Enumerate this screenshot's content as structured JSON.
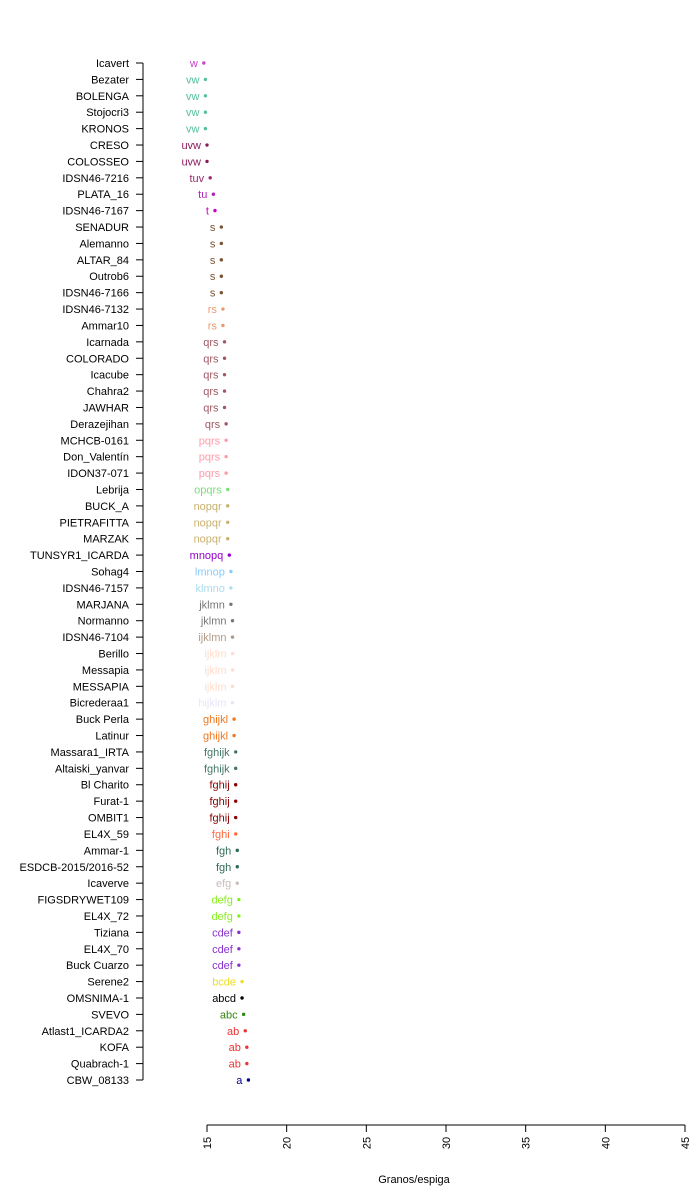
{
  "chart_data": {
    "type": "scatter",
    "title": "",
    "xlabel": "Granos/espiga",
    "ylabel": "",
    "xlim": [
      15,
      45
    ],
    "x_ticks": [
      15,
      20,
      25,
      30,
      35,
      40,
      45
    ],
    "grid": false,
    "legend": "none",
    "points": [
      {
        "genotype": "Icavert",
        "value": 14.8,
        "group": "w",
        "color": "#cc44cc"
      },
      {
        "genotype": "Bezater",
        "value": 14.9,
        "group": "vw",
        "color": "#55c0a0"
      },
      {
        "genotype": "BOLENGA",
        "value": 14.9,
        "group": "vw",
        "color": "#55c0a0"
      },
      {
        "genotype": "Stojocri3",
        "value": 14.9,
        "group": "vw",
        "color": "#55c0a0"
      },
      {
        "genotype": "KRONOS",
        "value": 14.9,
        "group": "vw",
        "color": "#55c0a0"
      },
      {
        "genotype": "CRESO",
        "value": 15.0,
        "group": "uvw",
        "color": "#8b1a5a"
      },
      {
        "genotype": "COLOSSEO",
        "value": 15.0,
        "group": "uvw",
        "color": "#8b1a5a"
      },
      {
        "genotype": "IDSN46-7216",
        "value": 15.2,
        "group": "tuv",
        "color": "#9b2a70"
      },
      {
        "genotype": "PLATA_16",
        "value": 15.4,
        "group": "tu",
        "color": "#b020b8"
      },
      {
        "genotype": "IDSN46-7167",
        "value": 15.5,
        "group": "t",
        "color": "#cc00cc"
      },
      {
        "genotype": "SENADUR",
        "value": 15.9,
        "group": "s",
        "color": "#7a5230"
      },
      {
        "genotype": "Alemanno",
        "value": 15.9,
        "group": "s",
        "color": "#7a5230"
      },
      {
        "genotype": "ALTAR_84",
        "value": 15.9,
        "group": "s",
        "color": "#7a5230"
      },
      {
        "genotype": "Outrob6",
        "value": 15.9,
        "group": "s",
        "color": "#7a5230"
      },
      {
        "genotype": "IDSN46-7166",
        "value": 15.9,
        "group": "s",
        "color": "#7a5230"
      },
      {
        "genotype": "IDSN46-7132",
        "value": 16.0,
        "group": "rs",
        "color": "#e89a70"
      },
      {
        "genotype": "Ammar10",
        "value": 16.0,
        "group": "rs",
        "color": "#e89a70"
      },
      {
        "genotype": "Icarnada",
        "value": 16.1,
        "group": "qrs",
        "color": "#9e5a62"
      },
      {
        "genotype": "COLORADO",
        "value": 16.1,
        "group": "qrs",
        "color": "#9e5a62"
      },
      {
        "genotype": "Icacube",
        "value": 16.1,
        "group": "qrs",
        "color": "#9e5a62"
      },
      {
        "genotype": "Chahra2",
        "value": 16.1,
        "group": "qrs",
        "color": "#9e5a62"
      },
      {
        "genotype": "JAWHAR",
        "value": 16.1,
        "group": "qrs",
        "color": "#9e5a62"
      },
      {
        "genotype": "Derazejihan",
        "value": 16.2,
        "group": "qrs",
        "color": "#9e5a62"
      },
      {
        "genotype": "MCHCB-0161",
        "value": 16.2,
        "group": "pqrs",
        "color": "#ff9aaa"
      },
      {
        "genotype": "Don_Valentín",
        "value": 16.2,
        "group": "pqrs",
        "color": "#ff9aaa"
      },
      {
        "genotype": "IDON37-071",
        "value": 16.2,
        "group": "pqrs",
        "color": "#ff9aaa"
      },
      {
        "genotype": "Lebrija",
        "value": 16.3,
        "group": "opqrs",
        "color": "#77e077"
      },
      {
        "genotype": "BUCK_A",
        "value": 16.3,
        "group": "nopqr",
        "color": "#c8b070"
      },
      {
        "genotype": "PIETRAFITTA",
        "value": 16.3,
        "group": "nopqr",
        "color": "#c8b070"
      },
      {
        "genotype": "MARZAK",
        "value": 16.3,
        "group": "nopqr",
        "color": "#c8b070"
      },
      {
        "genotype": "TUNSYR1_ICARDA",
        "value": 16.4,
        "group": "mnopq",
        "color": "#9900cc"
      },
      {
        "genotype": "Sohag4",
        "value": 16.5,
        "group": "lmnop",
        "color": "#88ccff"
      },
      {
        "genotype": "IDSN46-7157",
        "value": 16.5,
        "group": "klmno",
        "color": "#aaddee"
      },
      {
        "genotype": "MARJANA",
        "value": 16.5,
        "group": "jklmn",
        "color": "#777777"
      },
      {
        "genotype": "Normanno",
        "value": 16.6,
        "group": "jklmn",
        "color": "#777777"
      },
      {
        "genotype": "IDSN46-7104",
        "value": 16.6,
        "group": "ijklmn",
        "color": "#b09a88"
      },
      {
        "genotype": "Berillo",
        "value": 16.6,
        "group": "ijklm",
        "color": "#ffddcc"
      },
      {
        "genotype": "Messapia",
        "value": 16.6,
        "group": "ijklm",
        "color": "#ffddcc"
      },
      {
        "genotype": "MESSAPIA",
        "value": 16.6,
        "group": "ijklm",
        "color": "#ffddcc"
      },
      {
        "genotype": "Bicrederaa1",
        "value": 16.6,
        "group": "hijklm",
        "color": "#e6e6f6"
      },
      {
        "genotype": "Buck Perla",
        "value": 16.7,
        "group": "ghijkl",
        "color": "#ee7722"
      },
      {
        "genotype": "Latinur",
        "value": 16.7,
        "group": "ghijkl",
        "color": "#ee7722"
      },
      {
        "genotype": "Massara1_IRTA",
        "value": 16.8,
        "group": "fghijk",
        "color": "#447766"
      },
      {
        "genotype": "Altaiski_yanvar",
        "value": 16.8,
        "group": "fghijk",
        "color": "#447766"
      },
      {
        "genotype": "Bl Charito",
        "value": 16.8,
        "group": "fghij",
        "color": "#8b0000"
      },
      {
        "genotype": "Furat-1",
        "value": 16.8,
        "group": "fghij",
        "color": "#8b0000"
      },
      {
        "genotype": "OMBIT1",
        "value": 16.8,
        "group": "fghij",
        "color": "#8b0000"
      },
      {
        "genotype": "EL4X_59",
        "value": 16.8,
        "group": "fghi",
        "color": "#ff6a40"
      },
      {
        "genotype": "Ammar-1",
        "value": 16.9,
        "group": "fgh",
        "color": "#2e6b57"
      },
      {
        "genotype": "ESDCB-2015/2016-52",
        "value": 16.9,
        "group": "fgh",
        "color": "#2e6b57"
      },
      {
        "genotype": "Icaverve",
        "value": 16.9,
        "group": "efg",
        "color": "#ccbbbb"
      },
      {
        "genotype": "FIGSDRYWET109",
        "value": 17.0,
        "group": "defg",
        "color": "#88ee22"
      },
      {
        "genotype": "EL4X_72",
        "value": 17.0,
        "group": "defg",
        "color": "#88ee22"
      },
      {
        "genotype": "Tiziana",
        "value": 17.0,
        "group": "cdef",
        "color": "#8833cc"
      },
      {
        "genotype": "EL4X_70",
        "value": 17.0,
        "group": "cdef",
        "color": "#8833cc"
      },
      {
        "genotype": "Buck Cuarzo",
        "value": 17.0,
        "group": "cdef",
        "color": "#8833cc"
      },
      {
        "genotype": "Serene2",
        "value": 17.2,
        "group": "bcde",
        "color": "#eedd22"
      },
      {
        "genotype": "OMSNIMA-1",
        "value": 17.2,
        "group": "abcd",
        "color": "#000000"
      },
      {
        "genotype": "SVEVO",
        "value": 17.3,
        "group": "abc",
        "color": "#338811"
      },
      {
        "genotype": "Atlast1_ICARDA2",
        "value": 17.4,
        "group": "ab",
        "color": "#ee3333"
      },
      {
        "genotype": "KOFA",
        "value": 17.5,
        "group": "ab",
        "color": "#ee3333"
      },
      {
        "genotype": "Quabrach-1",
        "value": 17.5,
        "group": "ab",
        "color": "#ee3333"
      },
      {
        "genotype": "CBW_08133",
        "value": 17.6,
        "group": "a",
        "color": "#000088"
      }
    ]
  }
}
